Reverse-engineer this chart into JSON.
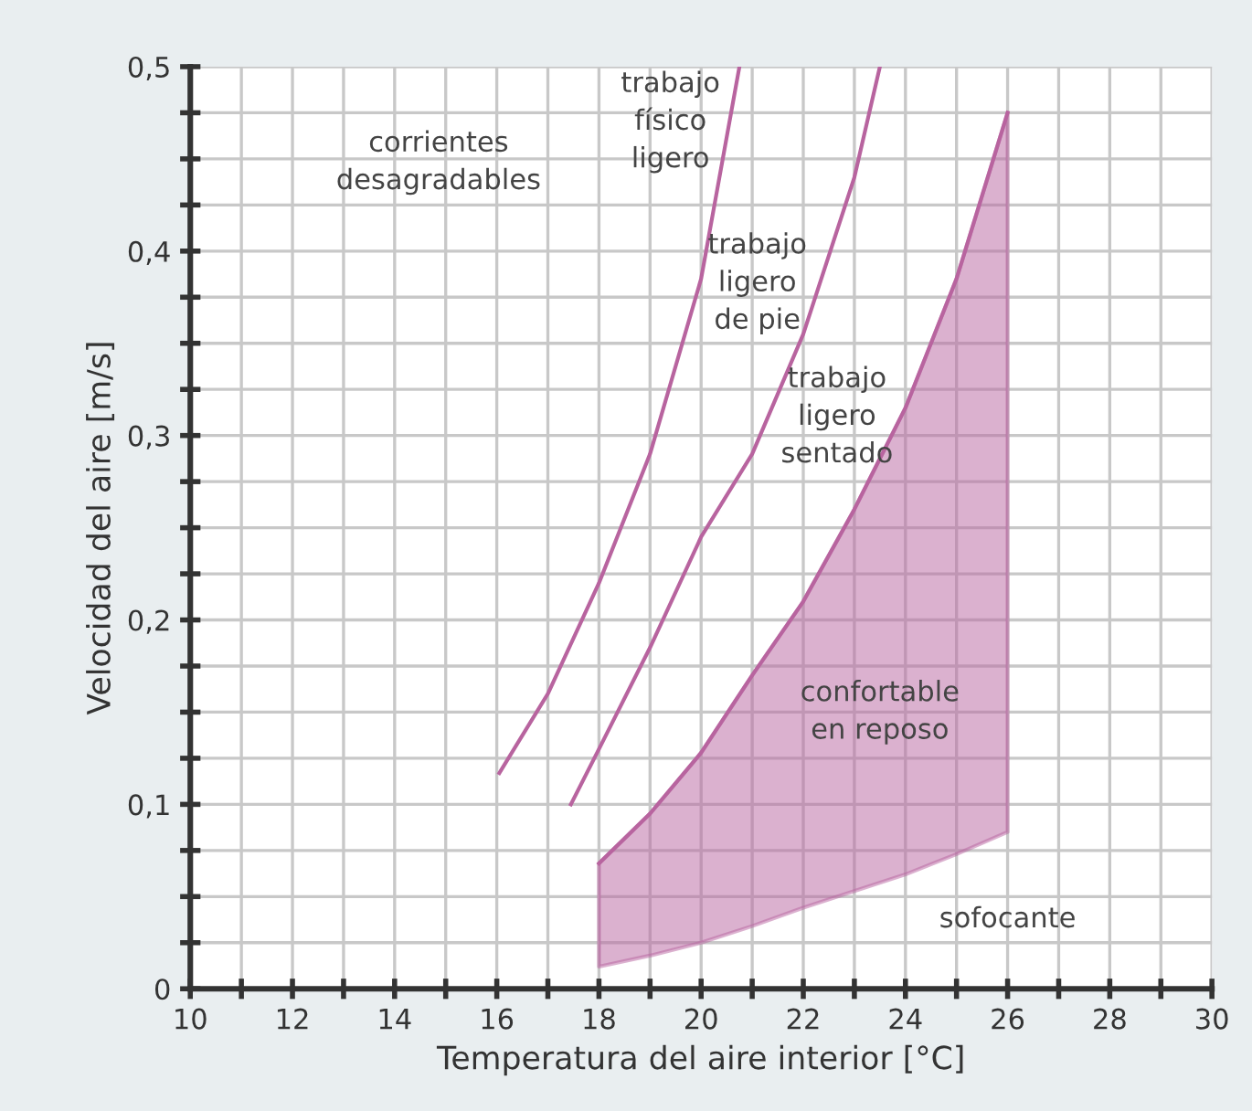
{
  "chart_data": {
    "type": "line",
    "xlabel": "Temperatura del aire interior [°C]",
    "ylabel": "Velocidad del aire [m/s]",
    "xlim": [
      10,
      30
    ],
    "ylim": [
      0,
      0.5
    ],
    "xticks": [
      10,
      {
        "value": 11,
        "label": null
      },
      12,
      {
        "value": 13,
        "label": null
      },
      14,
      {
        "value": 15,
        "label": null
      },
      16,
      {
        "value": 17,
        "label": null
      },
      18,
      {
        "value": 19,
        "label": null
      },
      20,
      {
        "value": 21,
        "label": null
      },
      22,
      {
        "value": 23,
        "label": null
      },
      24,
      {
        "value": 25,
        "label": null
      },
      26,
      {
        "value": 27,
        "label": null
      },
      28,
      {
        "value": 29,
        "label": null
      },
      30
    ],
    "yticks": [
      0,
      {
        "value": 0.025,
        "label": null
      },
      {
        "value": 0.05,
        "label": null
      },
      {
        "value": 0.075,
        "label": null
      },
      {
        "value": 0.1,
        "label": "0,1"
      },
      {
        "value": 0.125,
        "label": null
      },
      {
        "value": 0.15,
        "label": null
      },
      {
        "value": 0.175,
        "label": null
      },
      {
        "value": 0.2,
        "label": "0,2"
      },
      {
        "value": 0.225,
        "label": null
      },
      {
        "value": 0.25,
        "label": null
      },
      {
        "value": 0.275,
        "label": null
      },
      {
        "value": 0.3,
        "label": "0,3"
      },
      {
        "value": 0.325,
        "label": null
      },
      {
        "value": 0.35,
        "label": null
      },
      {
        "value": 0.375,
        "label": null
      },
      {
        "value": 0.4,
        "label": "0,4"
      },
      {
        "value": 0.425,
        "label": null
      },
      {
        "value": 0.45,
        "label": null
      },
      {
        "value": 0.475,
        "label": null
      },
      {
        "value": 0.5,
        "label": "0,5"
      }
    ],
    "grid": true,
    "series": [
      {
        "color": "#b8649f",
        "x": [
          16.05,
          17,
          18,
          19,
          20,
          20.75
        ],
        "values": [
          0.117,
          0.16,
          0.22,
          0.29,
          0.385,
          0.5
        ]
      },
      {
        "color": "#b8649f",
        "x": [
          17.45,
          18,
          19,
          20,
          21,
          22,
          23,
          23.5
        ],
        "values": [
          0.1,
          0.13,
          0.185,
          0.245,
          0.29,
          0.355,
          0.44,
          0.5
        ]
      },
      {
        "color": "#b8649f",
        "x": [
          18,
          19,
          20,
          21,
          22,
          23,
          24,
          25,
          26
        ],
        "values": [
          0.068,
          0.095,
          0.128,
          0.17,
          0.21,
          0.26,
          0.315,
          0.385,
          0.475
        ],
        "lower": [
          0.012,
          0.018,
          0.025,
          0.034,
          0.044,
          0.053,
          0.062,
          0.073,
          0.085
        ],
        "upper": [
          0.068,
          0.095,
          0.128,
          0.17,
          0.21,
          0.26,
          0.315,
          0.385,
          0.475
        ]
      }
    ],
    "annotations": [
      "corrientes\ndesagradables",
      "trabajo\nfísico\nligero",
      "trabajo\nligero\nde pie",
      "trabajo\nligero\nsentado",
      "confortable\nen reposo",
      "sofocante"
    ]
  }
}
